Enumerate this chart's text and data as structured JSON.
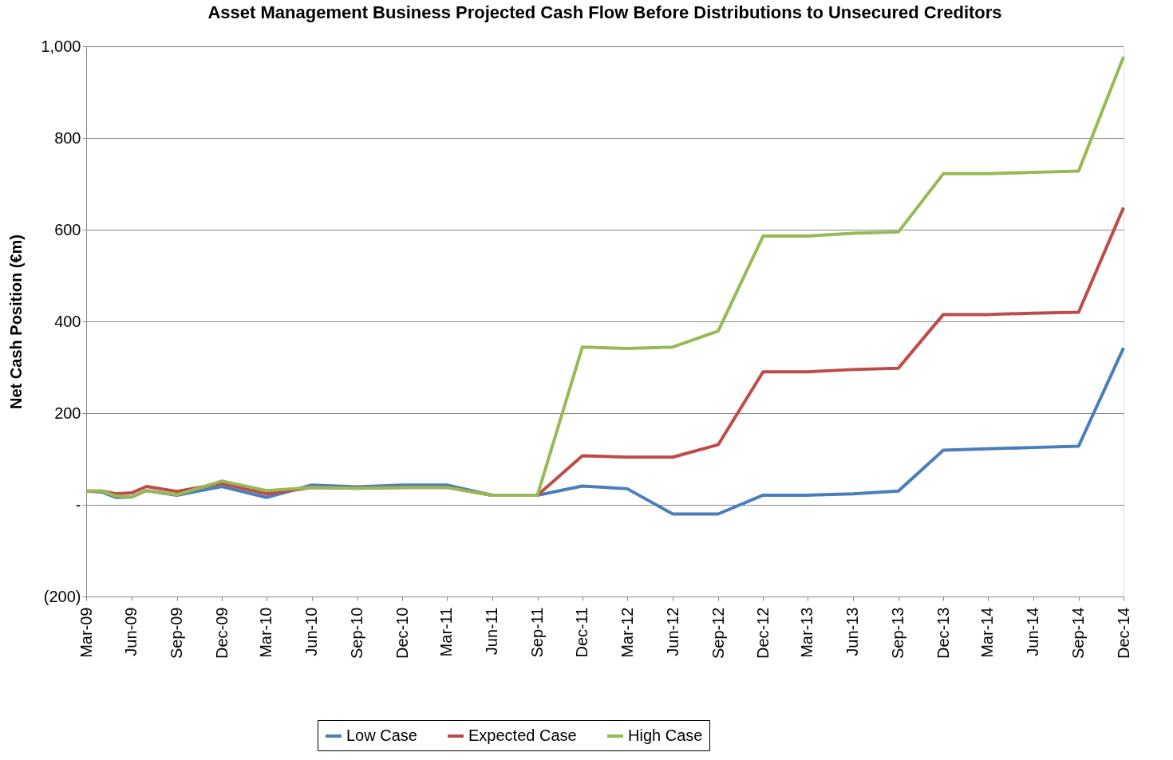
{
  "chart_data": {
    "type": "line",
    "title": "Asset Management Business Projected Cash Flow Before Distributions to Unsecured Creditors",
    "ylabel": "Net Cash Position (€m)",
    "x": [
      "2009-03",
      "2009-04",
      "2009-05",
      "2009-06",
      "2009-07",
      "2009-09",
      "2009-12",
      "2010-03",
      "2010-06",
      "2010-09",
      "2010-12",
      "2011-03",
      "2011-06",
      "2011-09",
      "2011-12",
      "2012-03",
      "2012-06",
      "2012-09",
      "2012-12",
      "2013-03",
      "2013-06",
      "2013-09",
      "2013-12",
      "2014-03",
      "2014-06",
      "2014-09",
      "2014-12"
    ],
    "series": [
      {
        "name": "Low Case",
        "color": "#4a7ebb",
        "values": [
          30,
          28,
          16,
          17,
          31,
          21,
          40,
          16,
          43,
          39,
          43,
          43,
          21,
          21,
          41,
          35,
          -20,
          -20,
          21,
          21,
          24,
          30,
          119,
          122,
          125,
          128,
          342
        ]
      },
      {
        "name": "Expected Case",
        "color": "#be4b48",
        "values": [
          30,
          30,
          24,
          26,
          40,
          29,
          47,
          24,
          38,
          36,
          38,
          38,
          21,
          21,
          107,
          104,
          104,
          131,
          290,
          290,
          295,
          298,
          415,
          415,
          418,
          420,
          648
        ]
      },
      {
        "name": "High Case",
        "color": "#98b954",
        "values": [
          30,
          30,
          19,
          17,
          31,
          22,
          52,
          31,
          38,
          36,
          38,
          38,
          21,
          21,
          344,
          341,
          344,
          379,
          586,
          586,
          592,
          595,
          722,
          722,
          725,
          728,
          977
        ]
      }
    ],
    "xlim": [
      "2009-03",
      "2014-12"
    ],
    "xticks": [
      {
        "value": "2009-03",
        "label": "Mar-09"
      },
      {
        "value": "2009-06",
        "label": "Jun-09"
      },
      {
        "value": "2009-09",
        "label": "Sep-09"
      },
      {
        "value": "2009-12",
        "label": "Dec-09"
      },
      {
        "value": "2010-03",
        "label": "Mar-10"
      },
      {
        "value": "2010-06",
        "label": "Jun-10"
      },
      {
        "value": "2010-09",
        "label": "Sep-10"
      },
      {
        "value": "2010-12",
        "label": "Dec-10"
      },
      {
        "value": "2011-03",
        "label": "Mar-11"
      },
      {
        "value": "2011-06",
        "label": "Jun-11"
      },
      {
        "value": "2011-09",
        "label": "Sep-11"
      },
      {
        "value": "2011-12",
        "label": "Dec-11"
      },
      {
        "value": "2012-03",
        "label": "Mar-12"
      },
      {
        "value": "2012-06",
        "label": "Jun-12"
      },
      {
        "value": "2012-09",
        "label": "Sep-12"
      },
      {
        "value": "2012-12",
        "label": "Dec-12"
      },
      {
        "value": "2013-03",
        "label": "Mar-13"
      },
      {
        "value": "2013-06",
        "label": "Jun-13"
      },
      {
        "value": "2013-09",
        "label": "Sep-13"
      },
      {
        "value": "2013-12",
        "label": "Dec-13"
      },
      {
        "value": "2014-03",
        "label": "Mar-14"
      },
      {
        "value": "2014-06",
        "label": "Jun-14"
      },
      {
        "value": "2014-09",
        "label": "Sep-14"
      },
      {
        "value": "2014-12",
        "label": "Dec-14"
      }
    ],
    "ylim": [
      -200,
      1000
    ],
    "yticks": [
      {
        "value": -200,
        "label": "(200)"
      },
      {
        "value": 0,
        "label": "-"
      },
      {
        "value": 200,
        "label": "200"
      },
      {
        "value": 400,
        "label": "400"
      },
      {
        "value": 600,
        "label": "600"
      },
      {
        "value": 800,
        "label": "800"
      },
      {
        "value": 1000,
        "label": "1,000"
      }
    ],
    "grid": "y",
    "legend": "bottom",
    "marker": "none",
    "line_style": "solid"
  }
}
